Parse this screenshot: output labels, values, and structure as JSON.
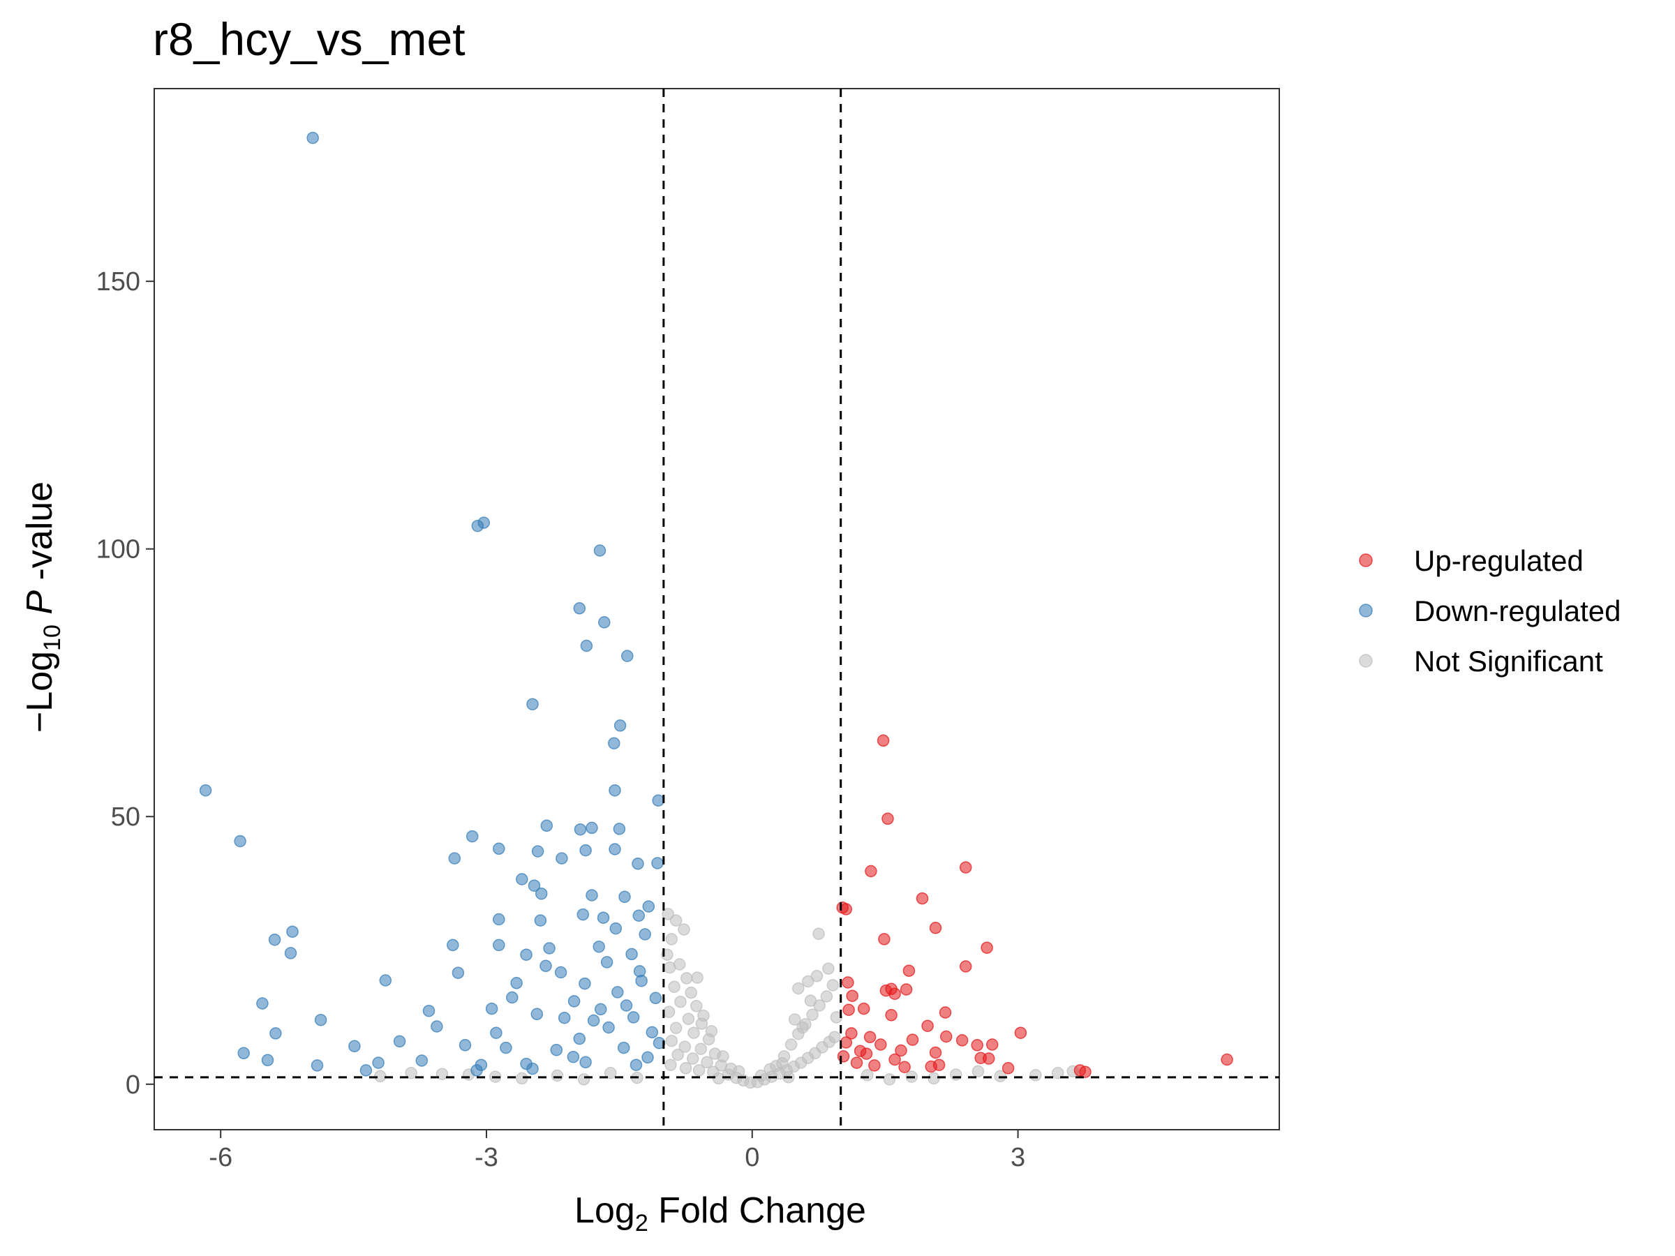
{
  "chart_data": {
    "type": "scatter",
    "title": "r8_hcy_vs_met",
    "xlabel": {
      "base": "Log",
      "sub": "2",
      "rest": " Fold Change"
    },
    "ylabel": {
      "prefix": "−Log",
      "sub": "10",
      "italic": " P",
      "rest": " -value"
    },
    "xlim": [
      -6.75,
      5.95
    ],
    "ylim": [
      -8.5,
      186
    ],
    "x_ticks": [
      -6,
      -3,
      0,
      3
    ],
    "x_tick_labels": [
      "-6",
      "-3",
      "0",
      "3"
    ],
    "y_ticks": [
      0,
      50,
      100,
      150
    ],
    "y_tick_labels": [
      "0",
      "50",
      "100",
      "150"
    ],
    "thresholds": {
      "fc_low": -1,
      "fc_high": 1,
      "p_line": 1.3
    },
    "grid": false,
    "legend_position": "right",
    "series": [
      {
        "name": "Up-regulated",
        "color": "#E41A1C",
        "points": [
          [
            1.48,
            64.2
          ],
          [
            1.53,
            49.6
          ],
          [
            2.41,
            40.5
          ],
          [
            1.34,
            39.8
          ],
          [
            1.92,
            34.7
          ],
          [
            1.02,
            33.0
          ],
          [
            1.06,
            32.7
          ],
          [
            2.07,
            29.2
          ],
          [
            1.49,
            27.1
          ],
          [
            2.65,
            25.5
          ],
          [
            2.41,
            22.0
          ],
          [
            1.77,
            21.2
          ],
          [
            1.08,
            19.0
          ],
          [
            1.51,
            17.5
          ],
          [
            1.57,
            17.8
          ],
          [
            1.74,
            17.7
          ],
          [
            1.13,
            16.5
          ],
          [
            1.61,
            16.9
          ],
          [
            2.18,
            13.4
          ],
          [
            1.26,
            14.1
          ],
          [
            1.09,
            13.9
          ],
          [
            1.57,
            12.9
          ],
          [
            3.03,
            9.6
          ],
          [
            1.98,
            10.9
          ],
          [
            2.54,
            7.3
          ],
          [
            2.71,
            7.4
          ],
          [
            2.37,
            8.2
          ],
          [
            1.81,
            8.3
          ],
          [
            2.19,
            8.9
          ],
          [
            2.07,
            5.9
          ],
          [
            1.12,
            9.5
          ],
          [
            1.33,
            8.8
          ],
          [
            1.45,
            7.4
          ],
          [
            1.22,
            6.2
          ],
          [
            1.61,
            4.6
          ],
          [
            2.02,
            3.3
          ],
          [
            2.58,
            4.9
          ],
          [
            2.67,
            4.8
          ],
          [
            2.89,
            3.0
          ],
          [
            3.7,
            2.6
          ],
          [
            3.76,
            2.3
          ],
          [
            5.36,
            4.6
          ],
          [
            1.03,
            5.2
          ],
          [
            1.18,
            4.0
          ],
          [
            1.38,
            3.5
          ],
          [
            1.72,
            3.2
          ],
          [
            2.11,
            3.6
          ],
          [
            1.06,
            7.8
          ],
          [
            1.29,
            5.7
          ],
          [
            1.68,
            6.3
          ]
        ]
      },
      {
        "name": "Down-regulated",
        "color": "#377EB8",
        "points": [
          [
            -4.96,
            176.8
          ],
          [
            -3.03,
            104.9
          ],
          [
            -3.1,
            104.3
          ],
          [
            -1.72,
            99.7
          ],
          [
            -1.95,
            88.9
          ],
          [
            -1.67,
            86.3
          ],
          [
            -1.87,
            81.9
          ],
          [
            -1.41,
            80.0
          ],
          [
            -2.48,
            71.0
          ],
          [
            -1.49,
            67.0
          ],
          [
            -1.56,
            63.7
          ],
          [
            -6.17,
            54.9
          ],
          [
            -1.55,
            54.9
          ],
          [
            -1.06,
            53.0
          ],
          [
            -5.78,
            45.4
          ],
          [
            -3.16,
            46.3
          ],
          [
            -1.5,
            47.7
          ],
          [
            -2.32,
            48.3
          ],
          [
            -1.94,
            47.6
          ],
          [
            -1.81,
            47.9
          ],
          [
            -2.15,
            42.2
          ],
          [
            -2.86,
            44.0
          ],
          [
            -2.42,
            43.5
          ],
          [
            -1.88,
            43.7
          ],
          [
            -1.55,
            43.9
          ],
          [
            -3.36,
            42.2
          ],
          [
            -1.29,
            41.2
          ],
          [
            -1.07,
            41.3
          ],
          [
            -2.46,
            37.1
          ],
          [
            -2.6,
            38.3
          ],
          [
            -1.81,
            35.3
          ],
          [
            -2.38,
            35.6
          ],
          [
            -1.44,
            35.0
          ],
          [
            -1.17,
            33.2
          ],
          [
            -1.28,
            31.5
          ],
          [
            -1.91,
            31.7
          ],
          [
            -2.39,
            30.6
          ],
          [
            -1.68,
            31.1
          ],
          [
            -2.86,
            30.8
          ],
          [
            -1.54,
            29.1
          ],
          [
            -1.21,
            28.0
          ],
          [
            -5.19,
            28.5
          ],
          [
            -5.39,
            27.0
          ],
          [
            -5.21,
            24.5
          ],
          [
            -3.38,
            26.0
          ],
          [
            -2.86,
            26.0
          ],
          [
            -2.55,
            24.2
          ],
          [
            -2.29,
            25.4
          ],
          [
            -1.73,
            25.7
          ],
          [
            -1.36,
            24.3
          ],
          [
            -4.14,
            19.4
          ],
          [
            -3.32,
            20.8
          ],
          [
            -2.66,
            18.9
          ],
          [
            -2.16,
            20.9
          ],
          [
            -1.89,
            18.8
          ],
          [
            -1.25,
            19.3
          ],
          [
            -3.65,
            13.7
          ],
          [
            -5.53,
            15.1
          ],
          [
            -2.94,
            14.1
          ],
          [
            -2.43,
            13.1
          ],
          [
            -2.12,
            12.4
          ],
          [
            -1.42,
            14.7
          ],
          [
            -4.87,
            12.0
          ],
          [
            -5.38,
            9.5
          ],
          [
            -3.24,
            7.3
          ],
          [
            -2.89,
            9.6
          ],
          [
            -3.98,
            8.0
          ],
          [
            -4.49,
            7.1
          ],
          [
            -5.74,
            5.8
          ],
          [
            -5.47,
            4.5
          ],
          [
            -4.91,
            3.5
          ],
          [
            -4.22,
            4.0
          ],
          [
            -3.73,
            4.4
          ],
          [
            -3.06,
            3.6
          ],
          [
            -2.78,
            6.8
          ],
          [
            -2.21,
            6.4
          ],
          [
            -1.95,
            8.5
          ],
          [
            -1.62,
            10.6
          ],
          [
            -1.34,
            12.5
          ],
          [
            -1.13,
            9.7
          ],
          [
            -2.48,
            2.9
          ],
          [
            -3.11,
            2.6
          ],
          [
            -4.36,
            2.6
          ],
          [
            -2.02,
            5.1
          ],
          [
            -1.45,
            6.8
          ],
          [
            -1.18,
            5.0
          ],
          [
            -1.09,
            16.1
          ],
          [
            -1.52,
            17.2
          ],
          [
            -2.01,
            15.5
          ],
          [
            -2.71,
            16.2
          ],
          [
            -1.27,
            21.1
          ],
          [
            -1.64,
            22.8
          ],
          [
            -2.33,
            22.1
          ],
          [
            -3.56,
            10.8
          ],
          [
            -1.79,
            11.9
          ],
          [
            -1.05,
            7.7
          ],
          [
            -1.31,
            3.6
          ],
          [
            -1.88,
            4.1
          ],
          [
            -2.55,
            3.8
          ],
          [
            -1.71,
            14.0
          ]
        ]
      },
      {
        "name": "Not Significant",
        "color": "#BEBEBE",
        "points": [
          [
            -0.95,
            31.8
          ],
          [
            -0.86,
            30.6
          ],
          [
            -0.77,
            28.9
          ],
          [
            -0.91,
            27.1
          ],
          [
            -0.96,
            24.2
          ],
          [
            -0.82,
            22.4
          ],
          [
            -0.93,
            21.8
          ],
          [
            -0.74,
            19.8
          ],
          [
            -0.88,
            18.2
          ],
          [
            -0.69,
            17.1
          ],
          [
            -0.81,
            15.4
          ],
          [
            -0.63,
            14.6
          ],
          [
            -0.94,
            13.5
          ],
          [
            -0.72,
            12.2
          ],
          [
            -0.57,
            11.3
          ],
          [
            -0.86,
            10.5
          ],
          [
            -0.66,
            9.6
          ],
          [
            -0.49,
            8.4
          ],
          [
            -0.91,
            8.1
          ],
          [
            -0.76,
            7.0
          ],
          [
            -0.58,
            6.6
          ],
          [
            -0.42,
            5.7
          ],
          [
            -0.84,
            5.5
          ],
          [
            -0.67,
            4.8
          ],
          [
            -0.51,
            4.1
          ],
          [
            -0.35,
            3.5
          ],
          [
            -0.92,
            3.6
          ],
          [
            -0.75,
            3.0
          ],
          [
            -0.6,
            2.6
          ],
          [
            -0.44,
            2.3
          ],
          [
            -0.27,
            1.8
          ],
          [
            -0.18,
            1.2
          ],
          [
            -0.1,
            0.7
          ],
          [
            -0.02,
            0.3
          ],
          [
            0.06,
            0.4
          ],
          [
            0.14,
            0.9
          ],
          [
            0.22,
            1.4
          ],
          [
            0.31,
            2.0
          ],
          [
            0.39,
            2.6
          ],
          [
            0.47,
            3.3
          ],
          [
            0.55,
            4.0
          ],
          [
            0.63,
            4.9
          ],
          [
            0.71,
            5.8
          ],
          [
            0.79,
            6.9
          ],
          [
            0.87,
            7.9
          ],
          [
            0.93,
            8.8
          ],
          [
            0.27,
            3.4
          ],
          [
            0.36,
            5.2
          ],
          [
            0.44,
            7.4
          ],
          [
            0.52,
            9.4
          ],
          [
            0.6,
            11.2
          ],
          [
            0.68,
            13.0
          ],
          [
            0.76,
            14.7
          ],
          [
            0.84,
            16.4
          ],
          [
            0.91,
            18.5
          ],
          [
            0.52,
            17.9
          ],
          [
            0.63,
            19.2
          ],
          [
            0.73,
            20.2
          ],
          [
            0.86,
            21.6
          ],
          [
            0.75,
            28.1
          ],
          [
            0.57,
            10.6
          ],
          [
            0.48,
            12.1
          ],
          [
            0.66,
            15.6
          ],
          [
            0.95,
            12.5
          ],
          [
            0.34,
            3.9
          ],
          [
            -0.33,
            5.2
          ],
          [
            -0.24,
            2.9
          ],
          [
            -0.46,
            9.9
          ],
          [
            -0.55,
            12.8
          ],
          [
            -0.62,
            19.9
          ],
          [
            -1.6,
            2.1
          ],
          [
            -2.2,
            1.6
          ],
          [
            -2.9,
            1.4
          ],
          [
            -3.5,
            1.9
          ],
          [
            -3.85,
            2.1
          ],
          [
            -4.2,
            1.5
          ],
          [
            -1.3,
            1.2
          ],
          [
            -1.9,
            0.9
          ],
          [
            -2.6,
            1.1
          ],
          [
            -3.2,
            1.8
          ],
          [
            1.3,
            1.7
          ],
          [
            1.8,
            1.4
          ],
          [
            2.3,
            1.8
          ],
          [
            2.8,
            1.5
          ],
          [
            3.2,
            1.7
          ],
          [
            3.45,
            2.1
          ],
          [
            3.62,
            2.4
          ],
          [
            1.55,
            0.9
          ],
          [
            2.05,
            1.1
          ],
          [
            2.55,
            2.4
          ],
          [
            -0.15,
            2.4
          ],
          [
            0.1,
            1.6
          ],
          [
            0.2,
            2.8
          ],
          [
            -0.38,
            1.1
          ],
          [
            0.41,
            1.3
          ]
        ]
      }
    ]
  }
}
